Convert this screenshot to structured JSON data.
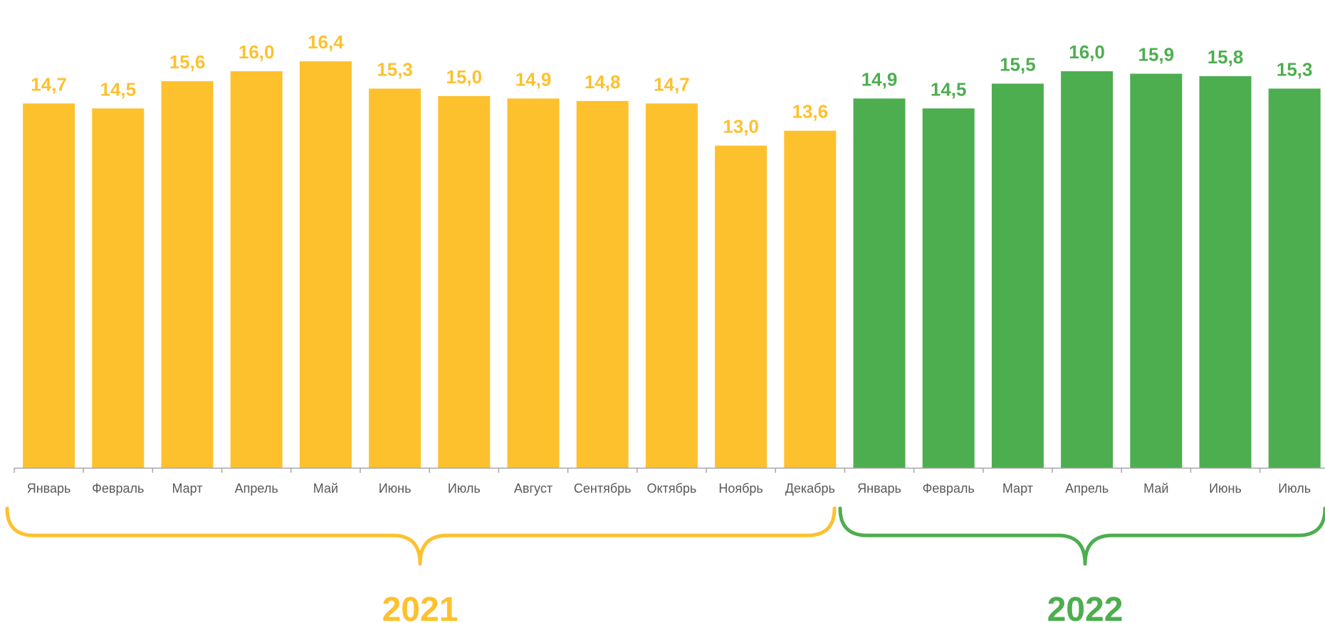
{
  "colors": {
    "year_2021": "#FDC12E",
    "year_2022": "#4DAE4F",
    "axis": "#A6A6A6",
    "tick_text": "#595959"
  },
  "chart_data": {
    "type": "bar",
    "categories": [
      "Январь",
      "Февраль",
      "Март",
      "Апрель",
      "Май",
      "Июнь",
      "Июль",
      "Август",
      "Сентябрь",
      "Октябрь",
      "Ноябрь",
      "Декабрь",
      "Январь",
      "Февраль",
      "Март",
      "Апрель",
      "Май",
      "Июнь",
      "Июль"
    ],
    "values": [
      14.7,
      14.5,
      15.6,
      16.0,
      16.4,
      15.3,
      15.0,
      14.9,
      14.8,
      14.7,
      13.0,
      13.6,
      14.9,
      14.5,
      15.5,
      16.0,
      15.9,
      15.8,
      15.3
    ],
    "value_labels": [
      "14,7",
      "14,5",
      "15,6",
      "16,0",
      "16,4",
      "15,3",
      "15,0",
      "14,9",
      "14,8",
      "14,7",
      "13,0",
      "13,6",
      "14,9",
      "14,5",
      "15,5",
      "16,0",
      "15,9",
      "15,8",
      "15,3"
    ],
    "groups": [
      {
        "name": "2021",
        "start": 0,
        "end": 11
      },
      {
        "name": "2022",
        "start": 12,
        "end": 18
      }
    ],
    "title": "",
    "xlabel": "",
    "ylabel": "",
    "ylim": [
      0,
      18.3
    ],
    "grid": false,
    "legend": "none"
  }
}
